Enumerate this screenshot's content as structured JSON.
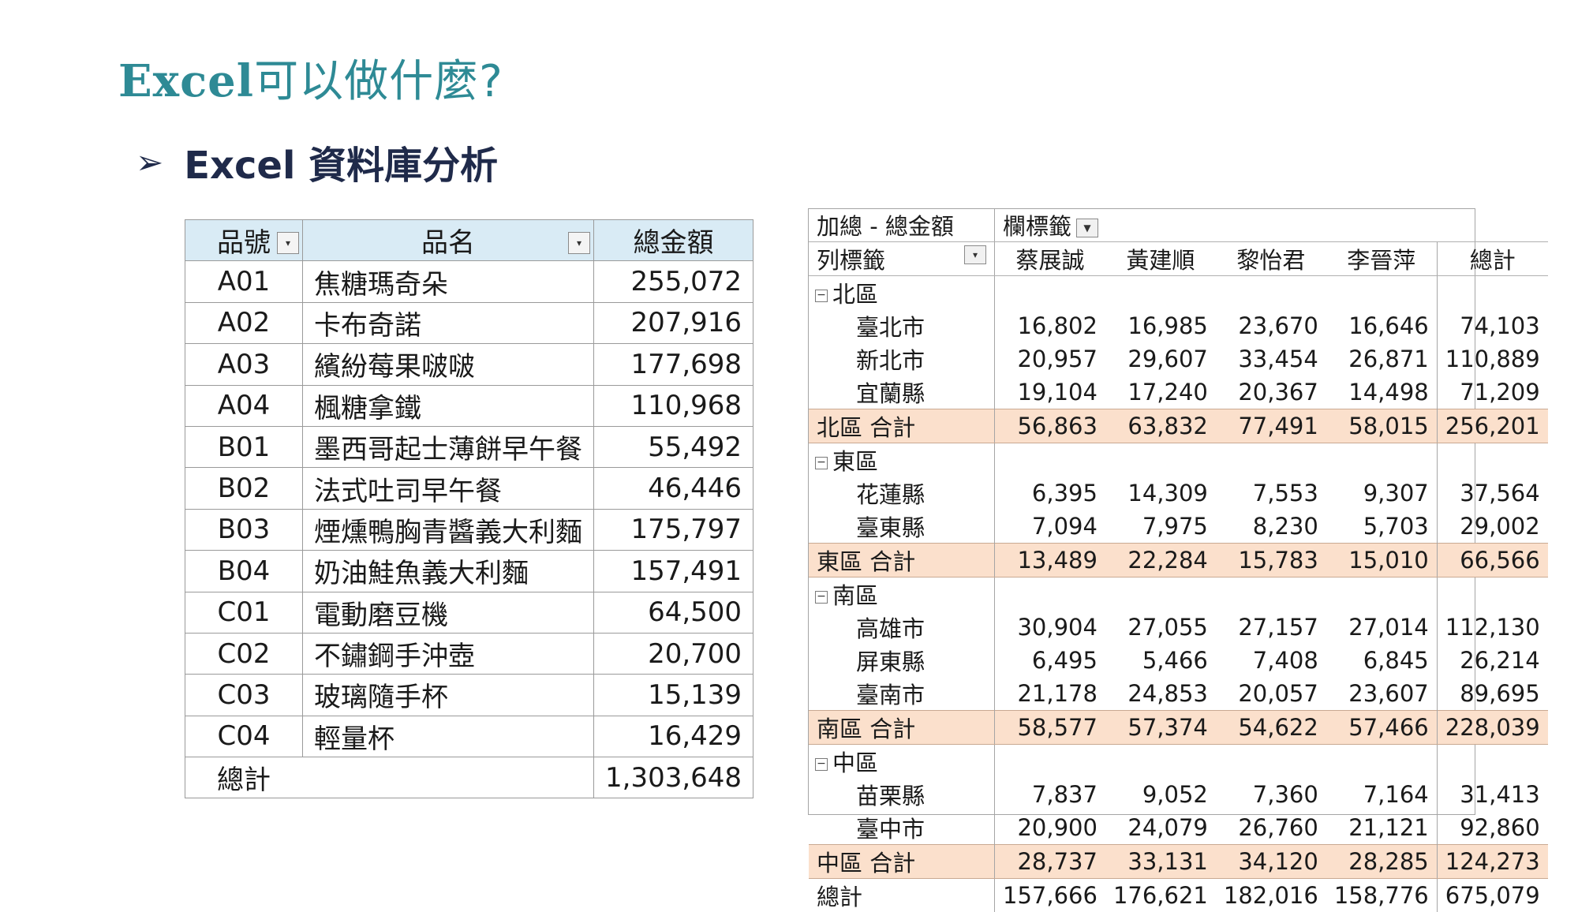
{
  "slide": {
    "title_latin": "Excel",
    "title_rest": "可以做什麼?",
    "subtitle_arrow": "➢",
    "subtitle": "Excel 資料庫分析"
  },
  "product_table": {
    "headers": [
      "品號",
      "品名",
      "總金額"
    ],
    "rows": [
      {
        "id": "A01",
        "name": "焦糖瑪奇朵",
        "amount": "255,072"
      },
      {
        "id": "A02",
        "name": "卡布奇諾",
        "amount": "207,916"
      },
      {
        "id": "A03",
        "name": "繽紛莓果啵啵",
        "amount": "177,698"
      },
      {
        "id": "A04",
        "name": "楓糖拿鐵",
        "amount": "110,968"
      },
      {
        "id": "B01",
        "name": "墨西哥起士薄餅早午餐",
        "amount": "55,492"
      },
      {
        "id": "B02",
        "name": "法式吐司早午餐",
        "amount": "46,446"
      },
      {
        "id": "B03",
        "name": "煙燻鴨胸青醬義大利麵",
        "amount": "175,797"
      },
      {
        "id": "B04",
        "name": "奶油鮭魚義大利麵",
        "amount": "157,491"
      },
      {
        "id": "C01",
        "name": "電動磨豆機",
        "amount": "64,500"
      },
      {
        "id": "C02",
        "name": "不鏽鋼手沖壺",
        "amount": "20,700"
      },
      {
        "id": "C03",
        "name": "玻璃隨手杯",
        "amount": "15,139"
      },
      {
        "id": "C04",
        "name": "輕量杯",
        "amount": "16,429"
      }
    ],
    "total_label": "總計",
    "total_amount": "1,303,648"
  },
  "pivot": {
    "corner_label": "加總 - 總金額",
    "col_field_label": "欄標籤",
    "row_field_label": "列標籤",
    "columns": [
      "蔡展誠",
      "黃建順",
      "黎怡君",
      "李晉萍",
      "總計"
    ],
    "regions": [
      {
        "name": "北區",
        "cities": [
          {
            "name": "臺北市",
            "values": [
              "16,802",
              "16,985",
              "23,670",
              "16,646",
              "74,103"
            ]
          },
          {
            "name": "新北市",
            "values": [
              "20,957",
              "29,607",
              "33,454",
              "26,871",
              "110,889"
            ]
          },
          {
            "name": "宜蘭縣",
            "values": [
              "19,104",
              "17,240",
              "20,367",
              "14,498",
              "71,209"
            ]
          }
        ],
        "subtotal_label": "北區 合計",
        "subtotal": [
          "56,863",
          "63,832",
          "77,491",
          "58,015",
          "256,201"
        ]
      },
      {
        "name": "東區",
        "cities": [
          {
            "name": "花蓮縣",
            "values": [
              "6,395",
              "14,309",
              "7,553",
              "9,307",
              "37,564"
            ]
          },
          {
            "name": "臺東縣",
            "values": [
              "7,094",
              "7,975",
              "8,230",
              "5,703",
              "29,002"
            ]
          }
        ],
        "subtotal_label": "東區 合計",
        "subtotal": [
          "13,489",
          "22,284",
          "15,783",
          "15,010",
          "66,566"
        ]
      },
      {
        "name": "南區",
        "cities": [
          {
            "name": "高雄市",
            "values": [
              "30,904",
              "27,055",
              "27,157",
              "27,014",
              "112,130"
            ]
          },
          {
            "name": "屏東縣",
            "values": [
              "6,495",
              "5,466",
              "7,408",
              "6,845",
              "26,214"
            ]
          },
          {
            "name": "臺南市",
            "values": [
              "21,178",
              "24,853",
              "20,057",
              "23,607",
              "89,695"
            ]
          }
        ],
        "subtotal_label": "南區 合計",
        "subtotal": [
          "58,577",
          "57,374",
          "54,622",
          "57,466",
          "228,039"
        ]
      },
      {
        "name": "中區",
        "cities": [
          {
            "name": "苗栗縣",
            "values": [
              "7,837",
              "9,052",
              "7,360",
              "7,164",
              "31,413"
            ]
          },
          {
            "name": "臺中市",
            "values": [
              "20,900",
              "24,079",
              "26,760",
              "21,121",
              "92,860"
            ]
          }
        ],
        "subtotal_label": "中區 合計",
        "subtotal": [
          "28,737",
          "33,131",
          "34,120",
          "28,285",
          "124,273"
        ]
      }
    ],
    "grand_label": "總計",
    "grand": [
      "157,666",
      "176,621",
      "182,016",
      "158,776",
      "675,079"
    ],
    "colors": {
      "subtotal_bg": "#fbe0cc",
      "header_bg": "#d9ebf5",
      "title": "#2e8a95",
      "subtitle": "#1f2a4a"
    }
  }
}
